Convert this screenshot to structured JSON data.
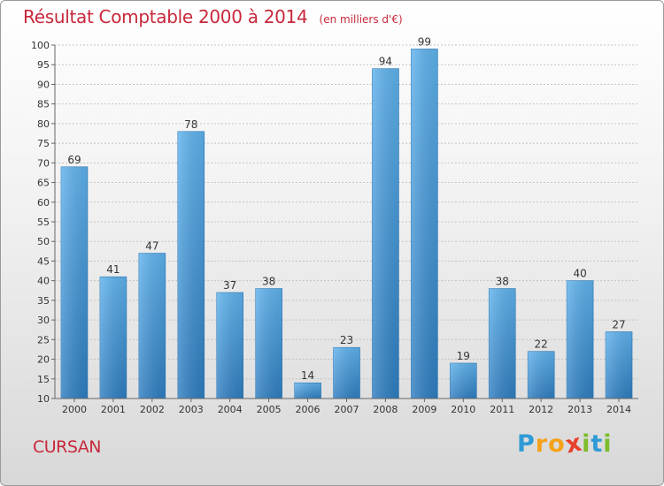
{
  "chart_data": {
    "type": "bar",
    "title": "Résultat Comptable 2000 à 2014",
    "unit": "(en milliers d'€)",
    "categories": [
      "2000",
      "2001",
      "2002",
      "2003",
      "2004",
      "2005",
      "2006",
      "2007",
      "2008",
      "2009",
      "2010",
      "2011",
      "2012",
      "2013",
      "2014"
    ],
    "values": [
      69,
      41,
      47,
      78,
      37,
      38,
      14,
      23,
      94,
      99,
      19,
      38,
      22,
      40,
      27
    ],
    "ylim": [
      10,
      100
    ],
    "yticks": [
      10,
      15,
      20,
      25,
      30,
      35,
      40,
      45,
      50,
      55,
      60,
      65,
      70,
      75,
      80,
      85,
      90,
      95,
      100
    ],
    "grid": true,
    "bar_color": "#3a94d6",
    "xlabel": "",
    "ylabel": ""
  },
  "commune": "CURSAN",
  "brand": {
    "letters": [
      "P",
      "r",
      "o",
      "x",
      "i",
      "t",
      "i"
    ],
    "colors": [
      "#2f9bd6",
      "#f5a21a",
      "#f5a21a",
      "#e8402a",
      "#7bbd2a",
      "#2f9bd6",
      "#7bbd2a"
    ]
  }
}
